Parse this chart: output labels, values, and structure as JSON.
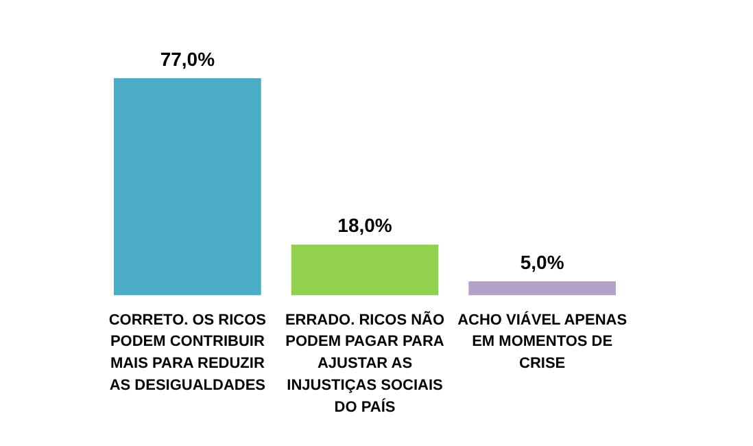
{
  "chart_data": {
    "type": "bar",
    "categories": [
      "CORRETO. OS RICOS PODEM CONTRIBUIR MAIS PARA REDUZIR AS DESIGUALDADES",
      "ERRADO. RICOS NÃO PODEM PAGAR PARA AJUSTAR AS INJUSTIÇAS SOCIAIS DO PAÍS",
      "ACHO VIÁVEL APENAS EM MOMENTOS DE CRISE"
    ],
    "values": [
      77.0,
      18.0,
      5.0
    ],
    "colors": [
      "#4bacc6",
      "#92d050",
      "#b3a2c7"
    ],
    "value_labels": [
      "77,0%",
      "18,0%",
      "5,0%"
    ],
    "grid": false,
    "legend": false
  }
}
